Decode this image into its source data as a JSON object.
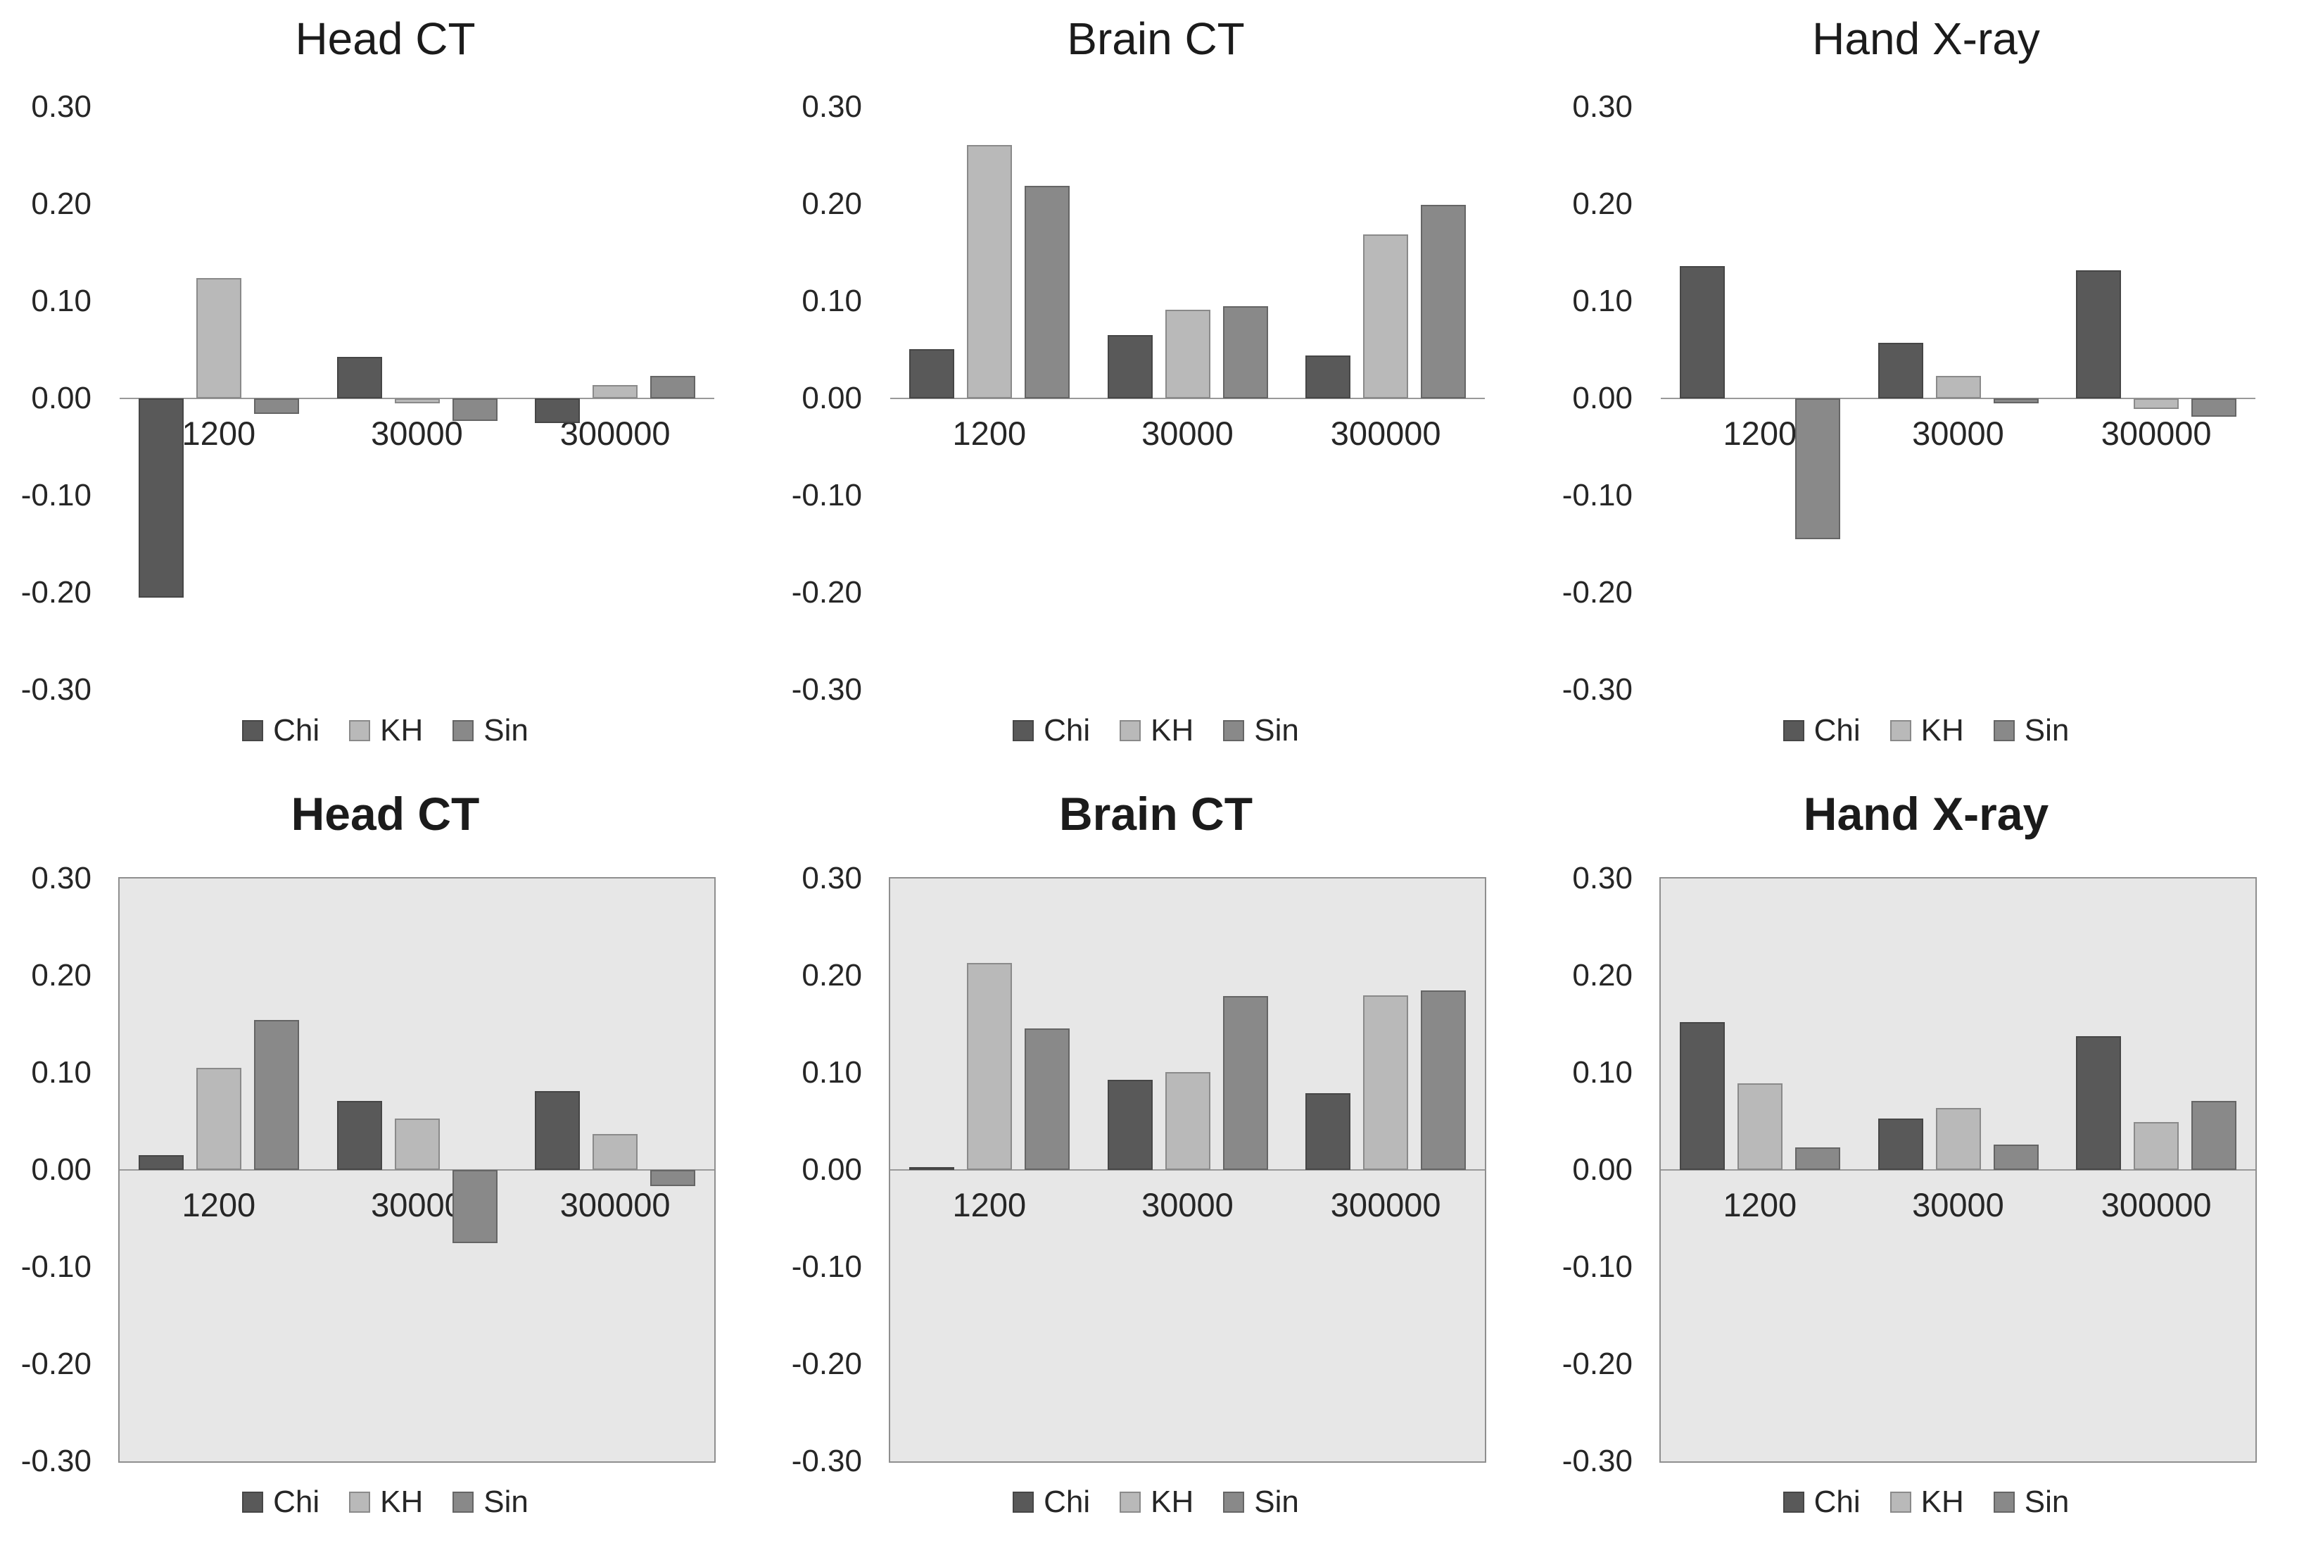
{
  "page": {
    "background_color": "#ffffff",
    "layout": "2x3 grid of bar charts"
  },
  "axis": {
    "y_tick_labels": [
      "0.30",
      "0.20",
      "0.10",
      "0.00",
      "-0.10",
      "-0.20",
      "-0.30"
    ],
    "ylim": [
      -0.3,
      0.3
    ]
  },
  "series_colors": {
    "Chi": "#595959",
    "KH": "#b9b9b9",
    "Sin": "#898989"
  },
  "chart_data": [
    {
      "type": "bar",
      "title": "Head CT",
      "title_bold": false,
      "plot_filled": false,
      "plot_bg": "#ffffff",
      "categories": [
        "1200",
        "30000",
        "300000"
      ],
      "series": [
        {
          "name": "Chi",
          "color": "#595959",
          "border": "#464646",
          "values": [
            -0.205,
            0.043,
            -0.025
          ]
        },
        {
          "name": "KH",
          "color": "#b9b9b9",
          "border": "#8a8a8a",
          "values": [
            0.124,
            -0.005,
            0.014
          ]
        },
        {
          "name": "Sin",
          "color": "#898989",
          "border": "#656565",
          "values": [
            -0.016,
            -0.023,
            0.023
          ]
        }
      ],
      "ylim": [
        -0.3,
        0.3
      ],
      "y_tick_labels": [
        "0.30",
        "0.20",
        "0.10",
        "0.00",
        "-0.10",
        "-0.20",
        "-0.30"
      ],
      "legend_position": "bottom",
      "legend_entries": [
        "Chi",
        "KH",
        "Sin"
      ]
    },
    {
      "type": "bar",
      "title": "Brain CT",
      "title_bold": false,
      "plot_filled": false,
      "plot_bg": "#ffffff",
      "categories": [
        "1200",
        "30000",
        "300000"
      ],
      "series": [
        {
          "name": "Chi",
          "color": "#595959",
          "border": "#464646",
          "values": [
            0.051,
            0.065,
            0.044
          ]
        },
        {
          "name": "KH",
          "color": "#b9b9b9",
          "border": "#8a8a8a",
          "values": [
            0.261,
            0.091,
            0.169
          ]
        },
        {
          "name": "Sin",
          "color": "#898989",
          "border": "#656565",
          "values": [
            0.219,
            0.095,
            0.199
          ]
        }
      ],
      "ylim": [
        -0.3,
        0.3
      ],
      "y_tick_labels": [
        "0.30",
        "0.20",
        "0.10",
        "0.00",
        "-0.10",
        "-0.20",
        "-0.30"
      ],
      "legend_position": "bottom",
      "legend_entries": [
        "Chi",
        "KH",
        "Sin"
      ]
    },
    {
      "type": "bar",
      "title": "Hand X-ray",
      "title_bold": false,
      "plot_filled": false,
      "plot_bg": "#ffffff",
      "categories": [
        "1200",
        "30000",
        "300000"
      ],
      "series": [
        {
          "name": "Chi",
          "color": "#595959",
          "border": "#464646",
          "values": [
            0.136,
            0.057,
            0.132
          ]
        },
        {
          "name": "KH",
          "color": "#b9b9b9",
          "border": "#8a8a8a",
          "values": [
            0.0,
            0.023,
            -0.011
          ]
        },
        {
          "name": "Sin",
          "color": "#898989",
          "border": "#656565",
          "values": [
            -0.145,
            -0.005,
            -0.019
          ]
        }
      ],
      "ylim": [
        -0.3,
        0.3
      ],
      "y_tick_labels": [
        "0.30",
        "0.20",
        "0.10",
        "0.00",
        "-0.10",
        "-0.20",
        "-0.30"
      ],
      "legend_position": "bottom",
      "legend_entries": [
        "Chi",
        "KH",
        "Sin"
      ]
    },
    {
      "type": "bar",
      "title": "Head CT",
      "title_bold": true,
      "plot_filled": true,
      "plot_bg": "#e7e7e7",
      "categories": [
        "1200",
        "30000",
        "300000"
      ],
      "series": [
        {
          "name": "Chi",
          "color": "#595959",
          "border": "#464646",
          "values": [
            0.015,
            0.071,
            0.081
          ]
        },
        {
          "name": "KH",
          "color": "#b9b9b9",
          "border": "#8a8a8a",
          "values": [
            0.105,
            0.053,
            0.037
          ]
        },
        {
          "name": "Sin",
          "color": "#898989",
          "border": "#656565",
          "values": [
            0.154,
            -0.075,
            -0.017
          ]
        }
      ],
      "ylim": [
        -0.3,
        0.3
      ],
      "y_tick_labels": [
        "0.30",
        "0.20",
        "0.10",
        "0.00",
        "-0.10",
        "-0.20",
        "-0.30"
      ],
      "legend_position": "bottom",
      "legend_entries": [
        "Chi",
        "KH",
        "Sin"
      ]
    },
    {
      "type": "bar",
      "title": "Brain CT",
      "title_bold": true,
      "plot_filled": true,
      "plot_bg": "#e7e7e7",
      "categories": [
        "1200",
        "30000",
        "300000"
      ],
      "series": [
        {
          "name": "Chi",
          "color": "#595959",
          "border": "#464646",
          "values": [
            0.003,
            0.093,
            0.079
          ]
        },
        {
          "name": "KH",
          "color": "#b9b9b9",
          "border": "#8a8a8a",
          "values": [
            0.213,
            0.101,
            0.18
          ]
        },
        {
          "name": "Sin",
          "color": "#898989",
          "border": "#656565",
          "values": [
            0.146,
            0.179,
            0.185
          ]
        }
      ],
      "ylim": [
        -0.3,
        0.3
      ],
      "y_tick_labels": [
        "0.30",
        "0.20",
        "0.10",
        "0.00",
        "-0.10",
        "-0.20",
        "-0.30"
      ],
      "legend_position": "bottom",
      "legend_entries": [
        "Chi",
        "KH",
        "Sin"
      ]
    },
    {
      "type": "bar",
      "title": "Hand X-ray",
      "title_bold": true,
      "plot_filled": true,
      "plot_bg": "#e7e7e7",
      "categories": [
        "1200",
        "30000",
        "300000"
      ],
      "series": [
        {
          "name": "Chi",
          "color": "#595959",
          "border": "#464646",
          "values": [
            0.152,
            0.053,
            0.138
          ]
        },
        {
          "name": "KH",
          "color": "#b9b9b9",
          "border": "#8a8a8a",
          "values": [
            0.089,
            0.064,
            0.049
          ]
        },
        {
          "name": "Sin",
          "color": "#898989",
          "border": "#656565",
          "values": [
            0.023,
            0.026,
            0.071
          ]
        }
      ],
      "ylim": [
        -0.3,
        0.3
      ],
      "y_tick_labels": [
        "0.30",
        "0.20",
        "0.10",
        "0.00",
        "-0.10",
        "-0.20",
        "-0.30"
      ],
      "legend_position": "bottom",
      "legend_entries": [
        "Chi",
        "KH",
        "Sin"
      ]
    }
  ]
}
